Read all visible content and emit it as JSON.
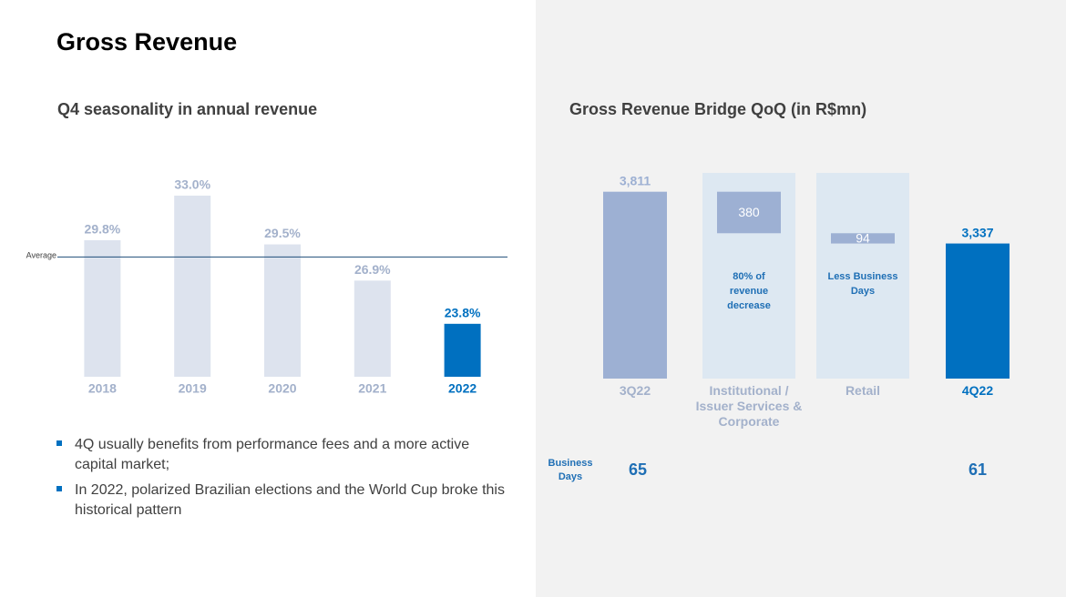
{
  "page_title": "Gross Revenue",
  "chart_data": [
    {
      "type": "bar",
      "title": "Q4 seasonality in annual revenue",
      "categories": [
        "2018",
        "2019",
        "2020",
        "2021",
        "2022"
      ],
      "values": [
        29.8,
        33.0,
        29.5,
        26.9,
        23.8
      ],
      "value_labels": [
        "29.8%",
        "33.0%",
        "29.5%",
        "26.9%",
        "23.8%"
      ],
      "colors": [
        "#dde3ee",
        "#dde3ee",
        "#dde3ee",
        "#dde3ee",
        "#0070c0"
      ],
      "label_colors": [
        "#a3b1cb",
        "#a3b1cb",
        "#a3b1cb",
        "#a3b1cb",
        "#0070c0"
      ],
      "category_colors": [
        "#a3b1cb",
        "#a3b1cb",
        "#a3b1cb",
        "#a3b1cb",
        "#0070c0"
      ],
      "ylim": [
        20,
        36
      ],
      "reference_line": {
        "label": "Average",
        "value": 28.6,
        "color": "#1f4e79"
      }
    },
    {
      "type": "waterfall",
      "title": "Gross Revenue Bridge QoQ (in R$mn)",
      "categories": [
        "3Q22",
        "Institutional / Issuer Services & Corporate",
        "Retail",
        "4Q22"
      ],
      "values": [
        3811,
        380,
        94,
        3337
      ],
      "value_labels": [
        "3,811",
        "380",
        "94",
        "3,337"
      ],
      "measures": [
        "absolute",
        "decrease",
        "decrease",
        "absolute"
      ],
      "colors": [
        "#9db0d3",
        "#9db0d3",
        "#9db0d3",
        "#0070c0"
      ],
      "label_colors": [
        "#9db0d3",
        "#ffffff",
        "#ffffff",
        "#0070c0"
      ],
      "category_colors": [
        "#a3b1cb",
        "#a3b1cb",
        "#a3b1cb",
        "#0070c0"
      ],
      "panel_color": "#dde8f2",
      "ylim": [
        2100,
        4000
      ],
      "annotations": [
        null,
        "80% of revenue decrease",
        "Less Business Days",
        null
      ],
      "business_days": {
        "label": "Business Days",
        "values": [
          65,
          null,
          null,
          61
        ]
      }
    }
  ],
  "bullets": [
    "4Q usually benefits from performance fees and a more active capital market;",
    "In 2022, polarized Brazilian elections and the World Cup broke this historical pattern"
  ]
}
